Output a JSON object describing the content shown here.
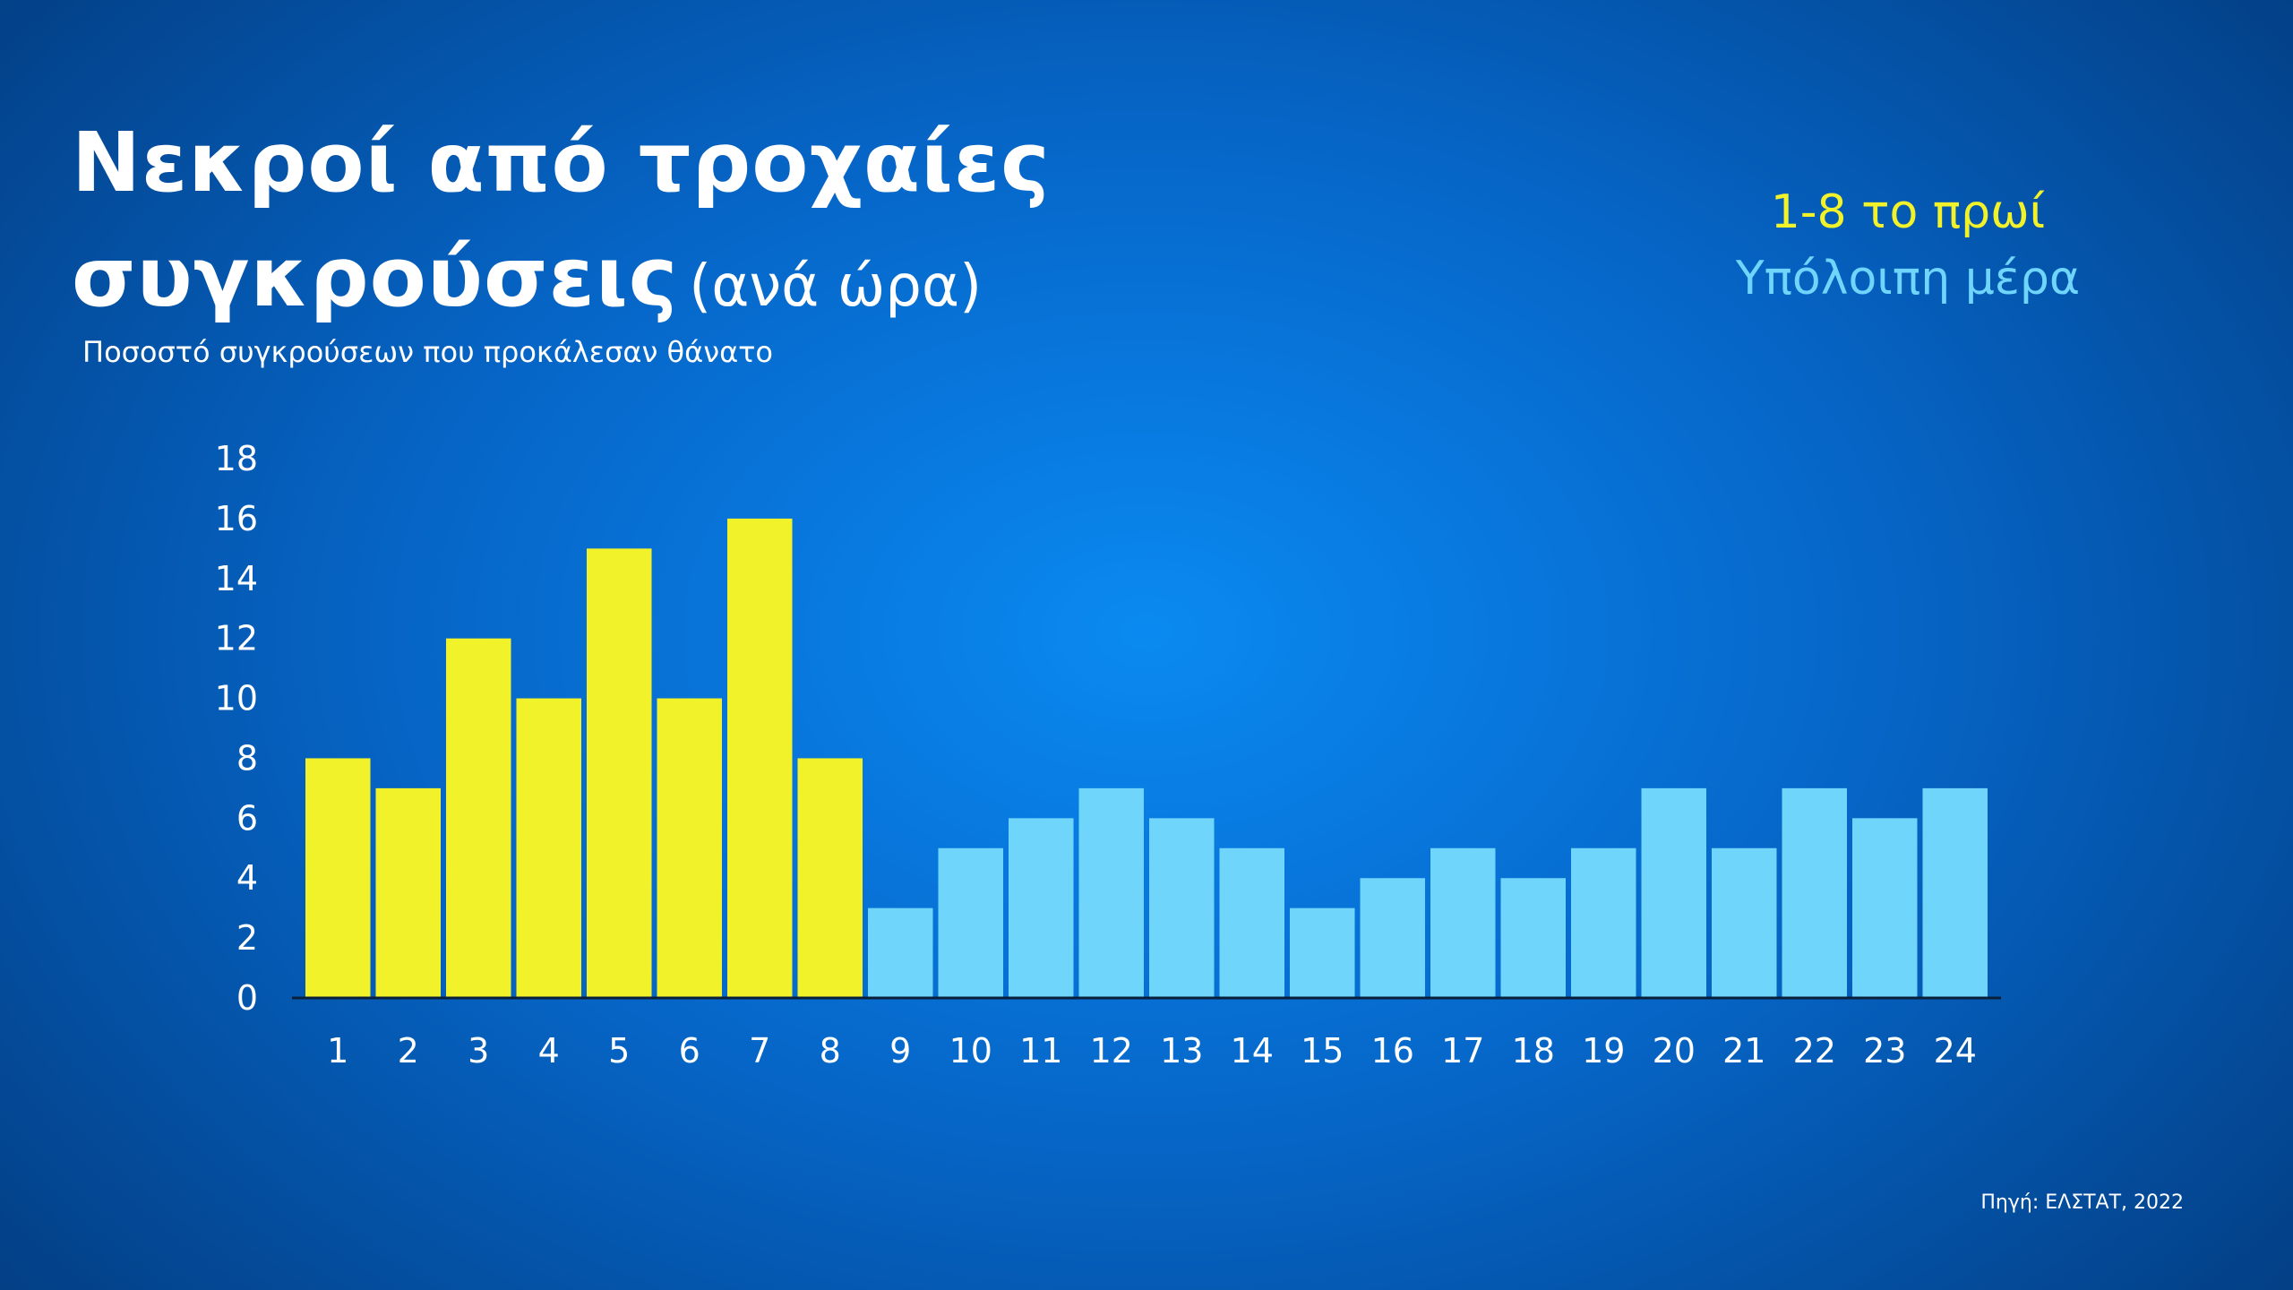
{
  "title_line1": "Νεκροί από τροχαίες",
  "title_line2": "συγκρούσεις",
  "title_unit": "(ανά ώρα)",
  "subtitle": "Ποσοστό συγκρούσεων που προκάλεσαν θάνατο",
  "legend": [
    {
      "label": "1-8 το πρωί",
      "color": "#f2f22a"
    },
    {
      "label": "Υπόλοιπη μέρα",
      "color": "#6fd5fb"
    }
  ],
  "source": "Πηγή: ΕΛΣΤΑΤ, 2022",
  "chart_data": {
    "type": "bar",
    "categories": [
      "1",
      "2",
      "3",
      "4",
      "5",
      "6",
      "7",
      "8",
      "9",
      "10",
      "11",
      "12",
      "13",
      "14",
      "15",
      "16",
      "17",
      "18",
      "19",
      "20",
      "21",
      "22",
      "23",
      "24"
    ],
    "values": [
      8,
      7,
      12,
      10,
      15,
      10,
      16,
      8,
      3,
      5,
      6,
      7,
      6,
      5,
      3,
      4,
      5,
      4,
      5,
      7,
      5,
      7,
      6,
      7
    ],
    "groups": [
      "1-8 το πρωί",
      "1-8 το πρωί",
      "1-8 το πρωί",
      "1-8 το πρωί",
      "1-8 το πρωί",
      "1-8 το πρωί",
      "1-8 το πρωί",
      "1-8 το πρωί",
      "Υπόλοιπη μέρα",
      "Υπόλοιπη μέρα",
      "Υπόλοιπη μέρα",
      "Υπόλοιπη μέρα",
      "Υπόλοιπη μέρα",
      "Υπόλοιπη μέρα",
      "Υπόλοιπη μέρα",
      "Υπόλοιπη μέρα",
      "Υπόλοιπη μέρα",
      "Υπόλοιπη μέρα",
      "Υπόλοιπη μέρα",
      "Υπόλοιπη μέρα",
      "Υπόλοιπη μέρα",
      "Υπόλοιπη μέρα",
      "Υπόλοιπη μέρα",
      "Υπόλοιπη μέρα"
    ],
    "yticks": [
      0,
      2,
      4,
      6,
      8,
      10,
      12,
      14,
      16,
      18
    ],
    "ylim": [
      0,
      18
    ],
    "grid": false,
    "legend_position": "top-right"
  }
}
